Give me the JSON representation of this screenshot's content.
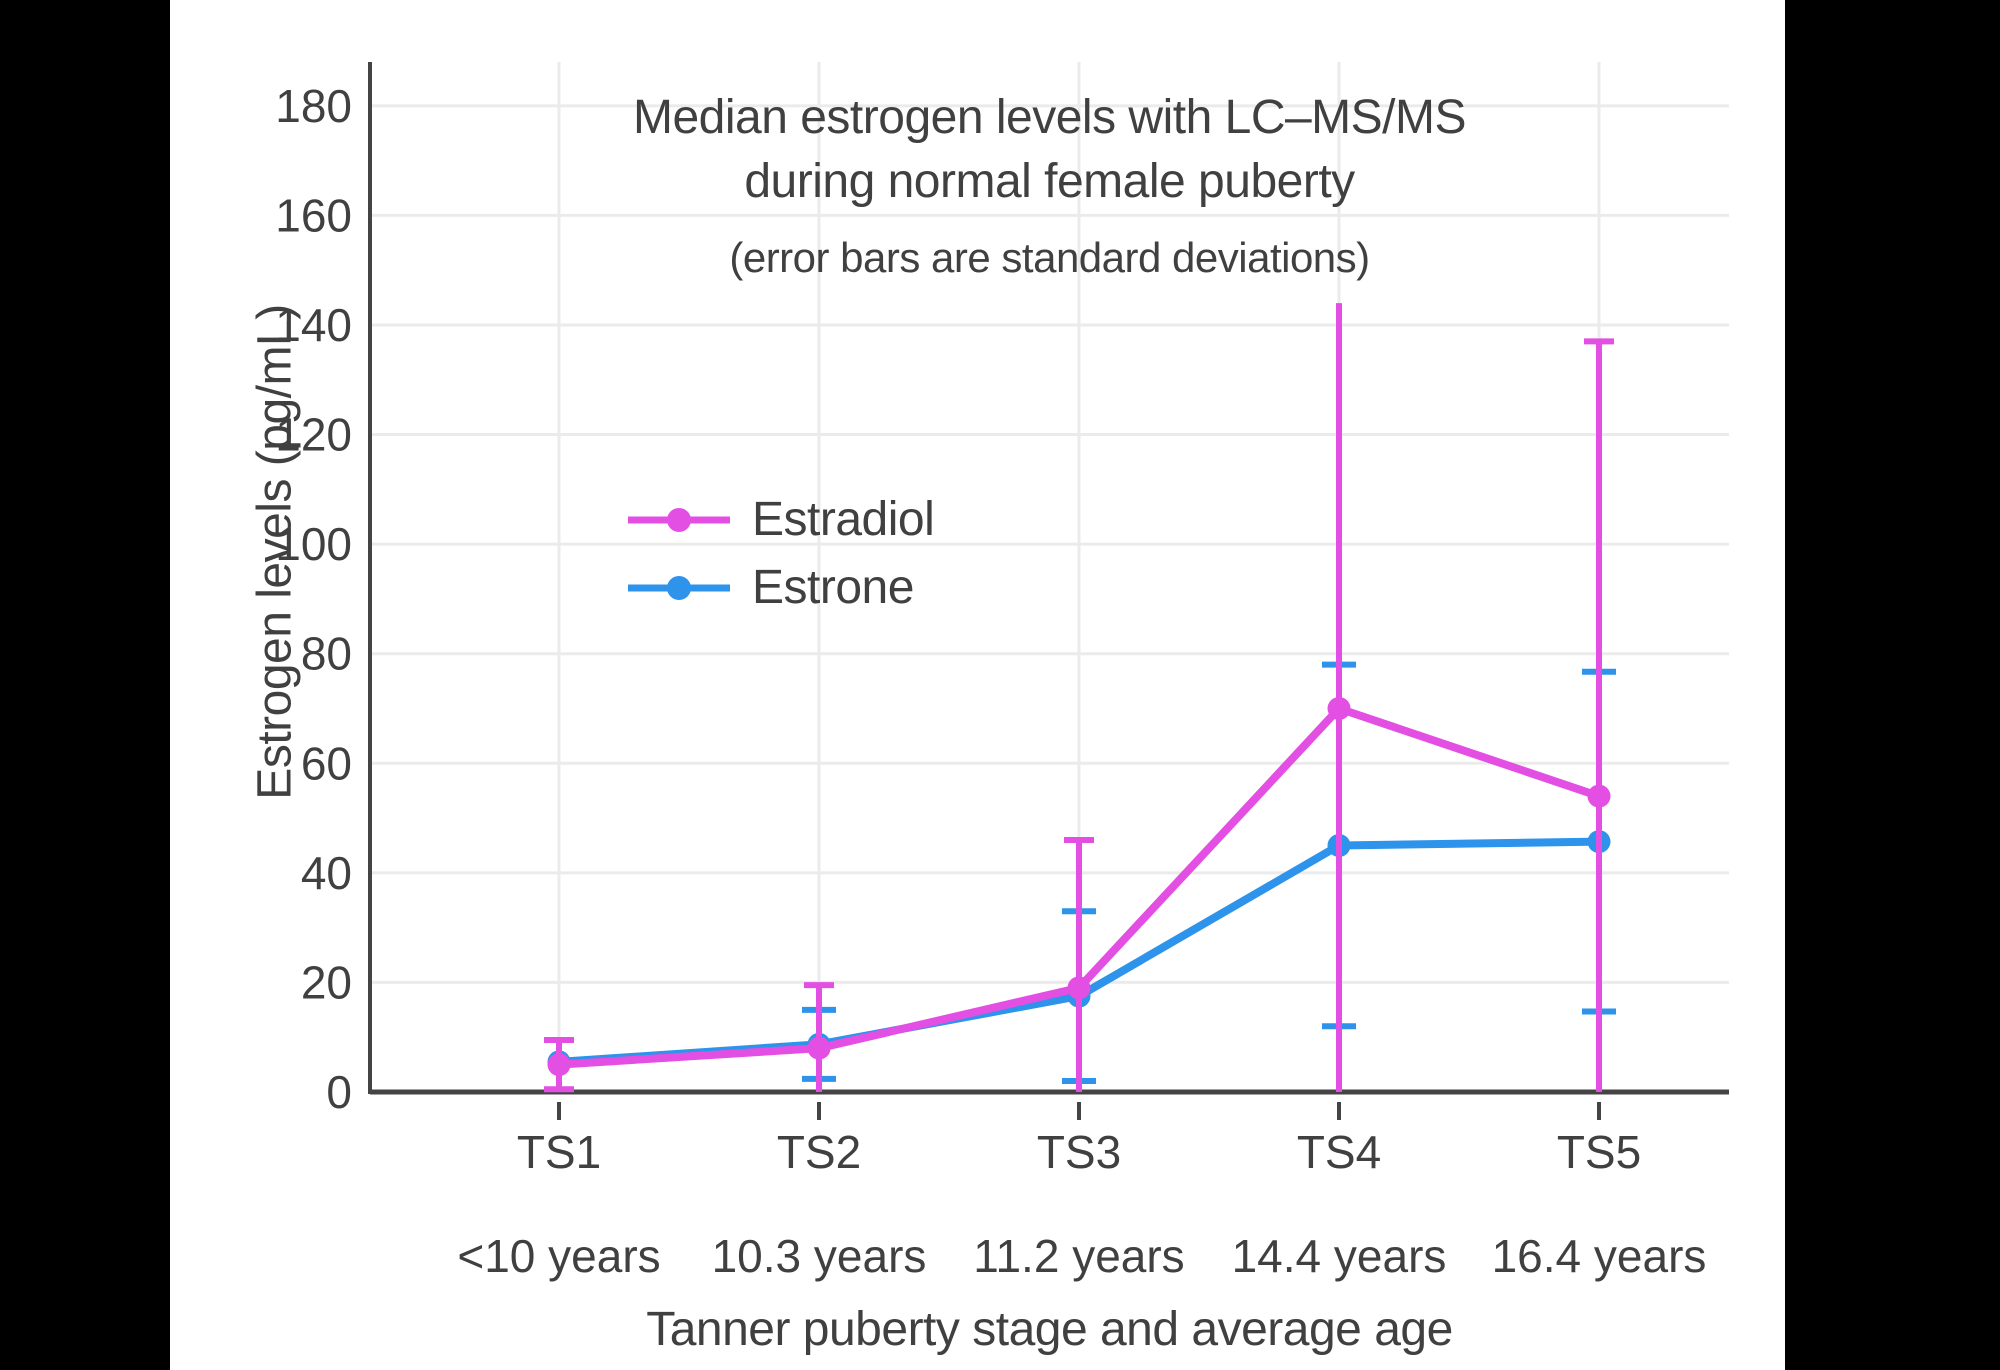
{
  "letterbox": {
    "background": "#000000"
  },
  "panel": {
    "background": "#FFFFFF"
  },
  "chart_data": {
    "type": "line",
    "title_line1": "Median estrogen levels with LC–MS/MS",
    "title_line2": "during normal female puberty",
    "subtitle": "(error bars are standard deviations)",
    "xlabel": "Tanner puberty stage and average age",
    "ylabel": "Estrogen levels (pg/mL)",
    "categories": [
      "TS1",
      "TS2",
      "TS3",
      "TS4",
      "TS5"
    ],
    "category_ages": [
      "<10 years",
      "10.3 years",
      "11.2 years",
      "14.4 years",
      "16.4 years"
    ],
    "yticks": [
      0,
      20,
      40,
      60,
      80,
      100,
      120,
      140,
      160,
      180
    ],
    "ylim": [
      0,
      188
    ],
    "grid": true,
    "legend_position": "inside upper-left of plot",
    "error_bars": "standard deviations, clipped at y=0",
    "series": [
      {
        "name": "Estradiol",
        "color": "#E34FE3",
        "values": [
          5,
          8,
          19,
          70,
          54
        ],
        "sd": [
          4.5,
          11.5,
          27,
          74,
          83
        ],
        "top_cap": [
          true,
          true,
          true,
          false,
          true
        ]
      },
      {
        "name": "Estrone",
        "color": "#2E93EB",
        "values": [
          5.5,
          8.7,
          17.5,
          45,
          45.7
        ],
        "sd": [
          null,
          6.3,
          15.5,
          33,
          31
        ],
        "top_cap": [
          true,
          true,
          true,
          true,
          true
        ]
      }
    ],
    "text_color": "#404040",
    "grid_color": "#EBEBEB",
    "axis_color": "#444444"
  }
}
